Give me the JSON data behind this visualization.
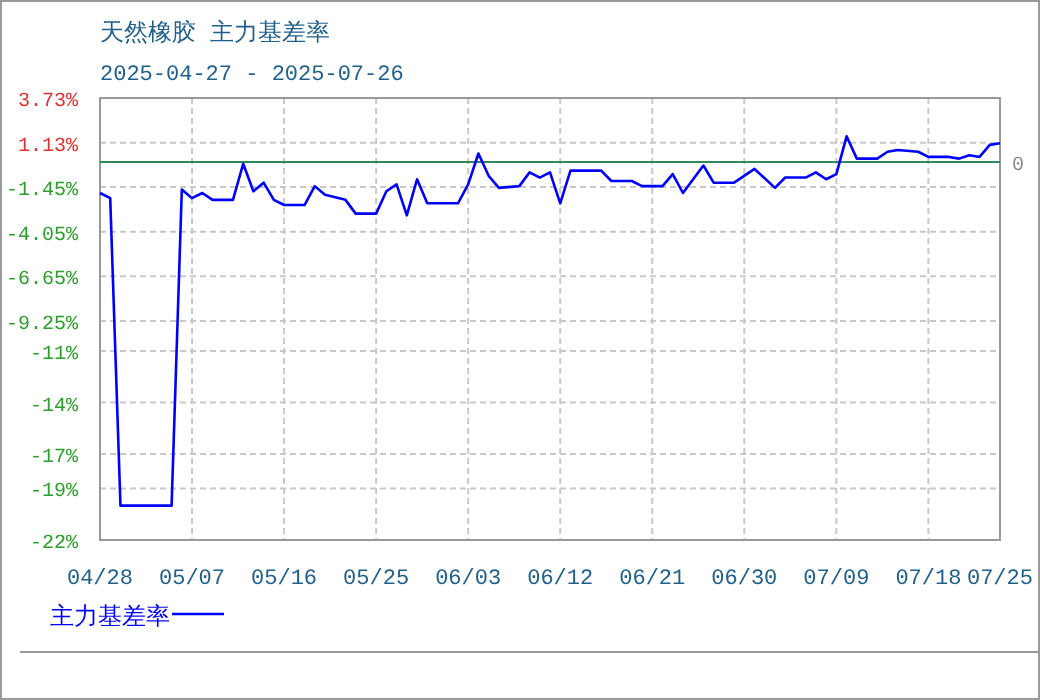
{
  "chart_data": {
    "type": "line",
    "title": "天然橡胶 主力基差率",
    "subtitle": "2025-04-27 - 2025-07-26",
    "x": [
      "2025-04-28",
      "2025-04-29",
      "2025-04-30",
      "2025-05-05",
      "2025-05-06",
      "2025-05-07",
      "2025-05-08",
      "2025-05-09",
      "2025-05-11",
      "2025-05-12",
      "2025-05-13",
      "2025-05-14",
      "2025-05-15",
      "2025-05-16",
      "2025-05-18",
      "2025-05-19",
      "2025-05-20",
      "2025-05-22",
      "2025-05-23",
      "2025-05-25",
      "2025-05-26",
      "2025-05-27",
      "2025-05-28",
      "2025-05-29",
      "2025-05-30",
      "2025-06-02",
      "2025-06-03",
      "2025-06-04",
      "2025-06-05",
      "2025-06-06",
      "2025-06-08",
      "2025-06-09",
      "2025-06-10",
      "2025-06-11",
      "2025-06-12",
      "2025-06-13",
      "2025-06-16",
      "2025-06-17",
      "2025-06-19",
      "2025-06-20",
      "2025-06-22",
      "2025-06-23",
      "2025-06-24",
      "2025-06-26",
      "2025-06-27",
      "2025-06-29",
      "2025-07-01",
      "2025-07-03",
      "2025-07-04",
      "2025-07-06",
      "2025-07-07",
      "2025-07-08",
      "2025-07-09",
      "2025-07-10",
      "2025-07-11",
      "2025-07-13",
      "2025-07-14",
      "2025-07-15",
      "2025-07-17",
      "2025-07-18",
      "2025-07-20",
      "2025-07-21",
      "2025-07-22",
      "2025-07-23",
      "2025-07-24",
      "2025-07-25"
    ],
    "series": [
      {
        "name": "主力基差率",
        "color": "#0000ff",
        "values": [
          -1.8,
          -2.1,
          -20.0,
          -20.0,
          -1.6,
          -2.1,
          -1.8,
          -2.2,
          -2.2,
          -0.1,
          -1.7,
          -1.2,
          -2.2,
          -2.5,
          -2.5,
          -1.4,
          -1.9,
          -2.2,
          -3.0,
          -3.0,
          -1.7,
          -1.3,
          -3.1,
          -1.0,
          -2.4,
          -2.4,
          -1.3,
          0.5,
          -0.8,
          -1.5,
          -1.4,
          -0.6,
          -0.9,
          -0.6,
          -2.4,
          -0.5,
          -0.5,
          -1.1,
          -1.1,
          -1.4,
          -1.4,
          -0.7,
          -1.8,
          -0.2,
          -1.2,
          -1.2,
          -0.4,
          -1.5,
          -0.9,
          -0.9,
          -0.6,
          -1.0,
          -0.7,
          1.5,
          0.2,
          0.2,
          0.6,
          0.7,
          0.6,
          0.3,
          0.3,
          0.2,
          0.4,
          0.3,
          1.0,
          1.1
        ]
      }
    ],
    "xlim": [
      "2025-04-28",
      "2025-07-25"
    ],
    "xticks": [
      {
        "value": "2025-04-28",
        "label": "04/28"
      },
      {
        "value": "2025-05-07",
        "label": "05/07"
      },
      {
        "value": "2025-05-16",
        "label": "05/16"
      },
      {
        "value": "2025-05-25",
        "label": "05/25"
      },
      {
        "value": "2025-06-03",
        "label": "06/03"
      },
      {
        "value": "2025-06-12",
        "label": "06/12"
      },
      {
        "value": "2025-06-21",
        "label": "06/21"
      },
      {
        "value": "2025-06-30",
        "label": "06/30"
      },
      {
        "value": "2025-07-09",
        "label": "07/09"
      },
      {
        "value": "2025-07-18",
        "label": "07/18"
      },
      {
        "value": "2025-07-25",
        "label": "07/25"
      }
    ],
    "ylim": [
      -22,
      3.73
    ],
    "yticks": [
      {
        "value": 3.73,
        "label": "3.73%"
      },
      {
        "value": 1.13,
        "label": "1.13%"
      },
      {
        "value": -1.45,
        "label": "-1.45%"
      },
      {
        "value": -4.05,
        "label": "-4.05%"
      },
      {
        "value": -6.65,
        "label": "-6.65%"
      },
      {
        "value": -9.25,
        "label": "-9.25%"
      },
      {
        "value": -11,
        "label": "-11%"
      },
      {
        "value": -14,
        "label": "-14%"
      },
      {
        "value": -17,
        "label": "-17%"
      },
      {
        "value": -19,
        "label": "-19%"
      },
      {
        "value": -22,
        "label": "-22%"
      }
    ],
    "ref_lines": [
      {
        "axis": "y",
        "value": 0,
        "label": "0",
        "color": "#2e8b57"
      }
    ],
    "grid": true,
    "legend": "bottom left",
    "marker": "none",
    "line_style": "solid"
  }
}
